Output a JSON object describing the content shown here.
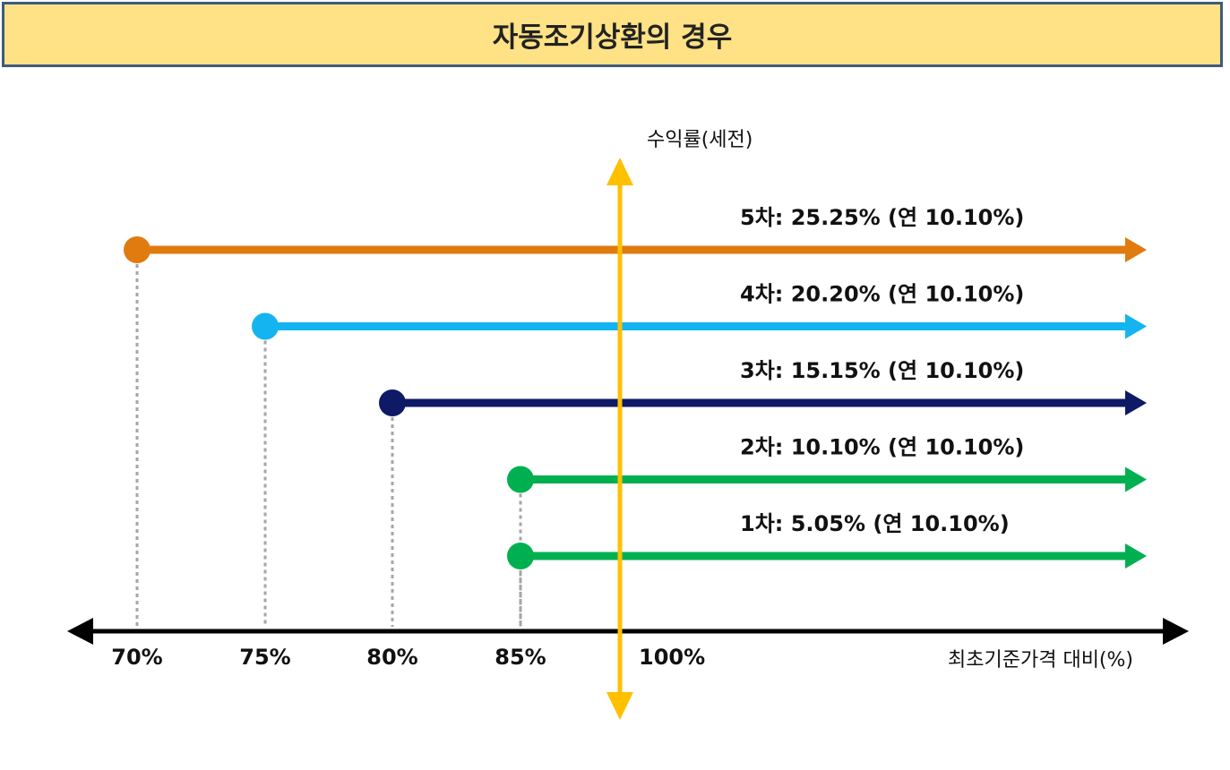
{
  "title": "자동조기상환의 경우",
  "y_axis_label": "수익률(세전)",
  "x_axis_label": "최초기준가격 대비(%)",
  "ticks": [
    {
      "value": 70,
      "label": "70%"
    },
    {
      "value": 75,
      "label": "75%"
    },
    {
      "value": 80,
      "label": "80%"
    },
    {
      "value": 85,
      "label": "85%"
    },
    {
      "value": 100,
      "label": "100%"
    }
  ],
  "colors": {
    "axis": "#000000",
    "y_axis": "#FFC000",
    "title_bg": "#FFE285",
    "title_border": "#3F5A7D",
    "guide": "#A6A6A6"
  },
  "redemptions": [
    {
      "barrier": 70,
      "label": "5차: 25.25% (연 10.10%)",
      "color": "#E07B10"
    },
    {
      "barrier": 75,
      "label": "4차: 20.20% (연 10.10%)",
      "color": "#14B4F0"
    },
    {
      "barrier": 80,
      "label": "3차: 15.15% (연 10.10%)",
      "color": "#0E1A66"
    },
    {
      "barrier": 85,
      "label": "2차: 10.10% (연 10.10%)",
      "color": "#00B050"
    },
    {
      "barrier": 85,
      "label": "1차: 5.05% (연 10.10%)",
      "color": "#00B050"
    }
  ]
}
